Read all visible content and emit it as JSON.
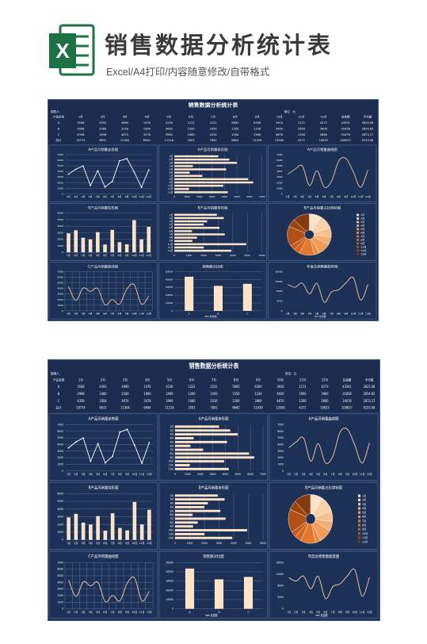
{
  "header": {
    "title": "销售数据分析统计表",
    "subtitle": "Excel/A4打印/内容随意修改/自带格式"
  },
  "dashboard": {
    "title": "销售数据分析统计表",
    "maker": "制表人：",
    "unit": "单位：元",
    "table": {
      "columns": [
        "产品名称",
        "1月",
        "2月",
        "3月",
        "4月",
        "5月",
        "6月",
        "7月",
        "8月",
        "9月",
        "10月",
        "11月",
        "12月",
        "总金额",
        "平均值"
      ],
      "rows": [
        [
          "A",
          3508,
          4393,
          4990,
          1476,
          4136,
          1221,
          2231,
          5892,
          6300,
          3910,
          1171,
          4273,
          43501,
          3625.08
        ],
        [
          "B",
          2908,
          3380,
          2240,
          1990,
          3090,
          1200,
          3450,
          1550,
          1230,
          4920,
          2000,
          3900,
          31858,
          2654.83
        ],
        [
          "C",
          4358,
          1858,
          4074,
          3478,
          3990,
          1080,
          2010,
          1200,
          3900,
          4670,
          1200,
          2660,
          34478,
          2873.17
        ],
        [
          "总计",
          10774,
          9631,
          11304,
          6944,
          11216,
          3501,
          7691,
          8642,
          11430,
          13500,
          4371,
          10833,
          109837,
          9153.08
        ]
      ]
    },
    "charts": [
      {
        "type": "line",
        "title": "A产品月销量走势图",
        "color": "#ffffff",
        "values": [
          3508,
          4393,
          4990,
          1476,
          4136,
          1221,
          2231,
          5892,
          6300,
          3910,
          1171,
          4273
        ],
        "ylim": [
          0,
          7000
        ],
        "yticks": [
          0,
          1000,
          2000,
          3000,
          4000,
          5000,
          6000,
          7000
        ]
      },
      {
        "type": "hbar",
        "title": "A产品月销量条形图",
        "color": "#fde3c8",
        "values": [
          3508,
          4393,
          4990,
          1476,
          4136,
          1221,
          2231,
          5892,
          6300,
          3910,
          1171,
          4273
        ],
        "xlim": [
          0,
          7000
        ],
        "xticks": [
          0,
          1000,
          2000,
          3000,
          4000,
          5000,
          6000,
          7000
        ]
      },
      {
        "type": "spline",
        "title": "A产品月销量曲线图",
        "color": "#f6c9a4",
        "values": [
          3508,
          4393,
          4990,
          1476,
          4136,
          1221,
          2231,
          5892,
          6300,
          3910,
          1171,
          4273
        ],
        "ylim": [
          0,
          7000
        ],
        "yticks": [
          0,
          1000,
          2000,
          3000,
          4000,
          5000,
          6000,
          7000
        ]
      },
      {
        "type": "column",
        "title": "B产品月销量柱形图",
        "color": "#fde3c8",
        "values": [
          2908,
          3380,
          2240,
          1990,
          3090,
          1200,
          3450,
          1550,
          1230,
          4920,
          2000,
          3900
        ],
        "ylim": [
          0,
          6000
        ],
        "yticks": [
          0,
          1000,
          2000,
          3000,
          4000,
          5000,
          6000
        ]
      },
      {
        "type": "hbar",
        "title": "B产品月销量条形图",
        "color": "#fde3c8",
        "values": [
          2908,
          3380,
          2240,
          1990,
          3090,
          1200,
          3450,
          1550,
          1230,
          4920,
          2000,
          3900
        ],
        "xlim": [
          0,
          6000
        ],
        "xticks": [
          0,
          1000,
          2000,
          3000,
          4000,
          5000,
          6000
        ]
      },
      {
        "type": "pie",
        "title": "B产品月销量占比饼状图",
        "values": [
          2908,
          3380,
          2240,
          1990,
          3090,
          1200,
          3450,
          1550,
          1230,
          4920,
          2000,
          3900
        ],
        "colors": [
          "#fbe2c9",
          "#f9d1ab",
          "#f7c08e",
          "#f4ae72",
          "#f19c57",
          "#ec8a40",
          "#e3782d",
          "#d56821",
          "#c55b1a",
          "#b24f15",
          "#9c4411",
          "#873a0e"
        ]
      },
      {
        "type": "spline",
        "title": "C产品月销量曲线图",
        "color": "#f6c9a4",
        "values": [
          4358,
          1858,
          4074,
          3478,
          3990,
          1080,
          2010,
          1200,
          3900,
          4670,
          1200,
          2660
        ],
        "ylim": [
          0,
          7000
        ],
        "yticks": [
          0,
          1000,
          2000,
          3000,
          4000,
          5000,
          6000,
          7000
        ],
        "grid": true
      },
      {
        "type": "column",
        "title": "销售额对比图",
        "color": "#fde3c8",
        "categories": [
          "A",
          "B",
          "C"
        ],
        "series_name": "总金额",
        "values": [
          43501,
          31858,
          34478
        ],
        "ylim": [
          0,
          50000
        ],
        "yticks": [
          0,
          10000,
          20000,
          30000,
          40000,
          50000
        ]
      },
      {
        "type": "spline",
        "title": "年度总销售额趋势图",
        "color": "#f6c9a4",
        "series_name": "总金额",
        "values": [
          10774,
          9631,
          11304,
          6944,
          11216,
          3501,
          7691,
          8642,
          11430,
          13500,
          4371,
          10833
        ],
        "ylim": [
          0,
          16000
        ],
        "yticks": [
          0,
          4000,
          8000,
          12000,
          16000
        ]
      }
    ]
  }
}
